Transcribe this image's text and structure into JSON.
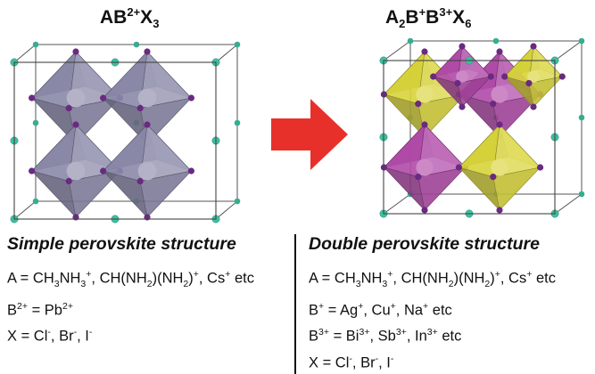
{
  "left": {
    "formula": [
      {
        "t": "AB",
        "s": ""
      },
      {
        "t": "2+",
        "s": "sup"
      },
      {
        "t": "X",
        "s": ""
      },
      {
        "t": "3",
        "s": "sub"
      }
    ],
    "heading": "Simple perovskite structure",
    "lines": [
      [
        {
          "t": "A = CH",
          "s": ""
        },
        {
          "t": "3",
          "s": "sub"
        },
        {
          "t": "NH",
          "s": ""
        },
        {
          "t": "3",
          "s": "sub"
        },
        {
          "t": "+",
          "s": "sup"
        },
        {
          "t": ", CH(NH",
          "s": ""
        },
        {
          "t": "2",
          "s": "sub"
        },
        {
          "t": ")(NH",
          "s": ""
        },
        {
          "t": "2",
          "s": "sub"
        },
        {
          "t": ")",
          "s": ""
        },
        {
          "t": "+",
          "s": "sup"
        },
        {
          "t": ", Cs",
          "s": ""
        },
        {
          "t": "+",
          "s": "sup"
        },
        {
          "t": " etc",
          "s": ""
        }
      ],
      [
        {
          "t": "B",
          "s": ""
        },
        {
          "t": "2+",
          "s": "sup"
        },
        {
          "t": " = Pb",
          "s": ""
        },
        {
          "t": "2+",
          "s": "sup"
        }
      ],
      [
        {
          "t": "X = Cl",
          "s": ""
        },
        {
          "t": "-",
          "s": "sup"
        },
        {
          "t": ", Br",
          "s": ""
        },
        {
          "t": "-",
          "s": "sup"
        },
        {
          "t": ", I",
          "s": ""
        },
        {
          "t": "-",
          "s": "sup"
        }
      ]
    ]
  },
  "right": {
    "formula": [
      {
        "t": "A",
        "s": ""
      },
      {
        "t": "2",
        "s": "sub"
      },
      {
        "t": "B",
        "s": ""
      },
      {
        "t": "+",
        "s": "sup"
      },
      {
        "t": "B",
        "s": ""
      },
      {
        "t": "3+",
        "s": "sup"
      },
      {
        "t": "X",
        "s": ""
      },
      {
        "t": "6",
        "s": "sub"
      }
    ],
    "heading": "Double perovskite structure",
    "lines": [
      [
        {
          "t": "A = CH",
          "s": ""
        },
        {
          "t": "3",
          "s": "sub"
        },
        {
          "t": "NH",
          "s": ""
        },
        {
          "t": "3",
          "s": "sub"
        },
        {
          "t": "+",
          "s": "sup"
        },
        {
          "t": ", CH(NH",
          "s": ""
        },
        {
          "t": "2",
          "s": "sub"
        },
        {
          "t": ")(NH",
          "s": ""
        },
        {
          "t": "2",
          "s": "sub"
        },
        {
          "t": ")",
          "s": ""
        },
        {
          "t": "+",
          "s": "sup"
        },
        {
          "t": ", Cs",
          "s": ""
        },
        {
          "t": "+",
          "s": "sup"
        },
        {
          "t": " etc",
          "s": ""
        }
      ],
      [
        {
          "t": "B",
          "s": ""
        },
        {
          "t": "+",
          "s": "sup"
        },
        {
          "t": " = Ag",
          "s": ""
        },
        {
          "t": "+",
          "s": "sup"
        },
        {
          "t": ", Cu",
          "s": ""
        },
        {
          "t": "+",
          "s": "sup"
        },
        {
          "t": ", Na",
          "s": ""
        },
        {
          "t": "+",
          "s": "sup"
        },
        {
          "t": " etc",
          "s": ""
        }
      ],
      [
        {
          "t": "B",
          "s": ""
        },
        {
          "t": "3+",
          "s": "sup"
        },
        {
          "t": " = Bi",
          "s": ""
        },
        {
          "t": "3+",
          "s": "sup"
        },
        {
          "t": ", Sb",
          "s": ""
        },
        {
          "t": "3+",
          "s": "sup"
        },
        {
          "t": ", In",
          "s": ""
        },
        {
          "t": "3+",
          "s": "sup"
        },
        {
          "t": " etc",
          "s": ""
        }
      ],
      [
        {
          "t": "X = Cl",
          "s": ""
        },
        {
          "t": "-",
          "s": "sup"
        },
        {
          "t": ", Br",
          "s": ""
        },
        {
          "t": "-",
          "s": "sup"
        },
        {
          "t": ", I",
          "s": ""
        },
        {
          "t": "-",
          "s": "sup"
        }
      ]
    ]
  },
  "colors": {
    "octahedron_simple": "#8a88a8",
    "octahedron_b_plus": "#b04aa8",
    "octahedron_b_3plus": "#d8d43a",
    "a_site_atom": "#3cc0a0",
    "x_site_atom": "#6a2a80",
    "arrow": "#e8302a"
  }
}
